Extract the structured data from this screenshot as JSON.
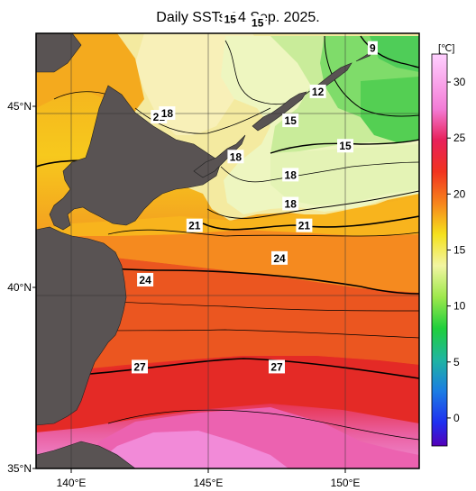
{
  "title": "Daily SSTs 04 Sep. 2025.",
  "map": {
    "lat_ticks": [
      {
        "value": 45,
        "label": "45°N"
      },
      {
        "value": 40,
        "label": "40°N"
      },
      {
        "value": 35,
        "label": "35°N"
      }
    ],
    "lon_ticks": [
      {
        "value": 140,
        "label": "140°E"
      },
      {
        "value": 145,
        "label": "145°E"
      },
      {
        "value": 150,
        "label": "150°E"
      }
    ],
    "contour_labels": [
      {
        "text": "15",
        "lon": 145.8,
        "lat": 47.4
      },
      {
        "text": "15",
        "lon": 146.8,
        "lat": 47.3
      },
      {
        "text": "9",
        "lon": 151.0,
        "lat": 46.6
      },
      {
        "text": "12",
        "lon": 149.0,
        "lat": 45.4
      },
      {
        "text": "21",
        "lon": 143.2,
        "lat": 44.7
      },
      {
        "text": "18",
        "lon": 143.5,
        "lat": 44.8
      },
      {
        "text": "15",
        "lon": 148.0,
        "lat": 44.6
      },
      {
        "text": "15",
        "lon": 150.0,
        "lat": 43.9
      },
      {
        "text": "18",
        "lon": 146.0,
        "lat": 43.6
      },
      {
        "text": "18",
        "lon": 148.0,
        "lat": 43.1
      },
      {
        "text": "18",
        "lon": 148.0,
        "lat": 42.3
      },
      {
        "text": "21",
        "lon": 144.5,
        "lat": 41.7
      },
      {
        "text": "21",
        "lon": 148.5,
        "lat": 41.7
      },
      {
        "text": "24",
        "lon": 147.6,
        "lat": 40.8
      },
      {
        "text": "24",
        "lon": 142.7,
        "lat": 40.2
      },
      {
        "text": "27",
        "lon": 142.5,
        "lat": 37.8
      },
      {
        "text": "27",
        "lon": 147.5,
        "lat": 37.8
      }
    ]
  },
  "colorbar": {
    "unit": "[℃]",
    "ticks": [
      30,
      25,
      20,
      15,
      10,
      5,
      0
    ]
  }
}
